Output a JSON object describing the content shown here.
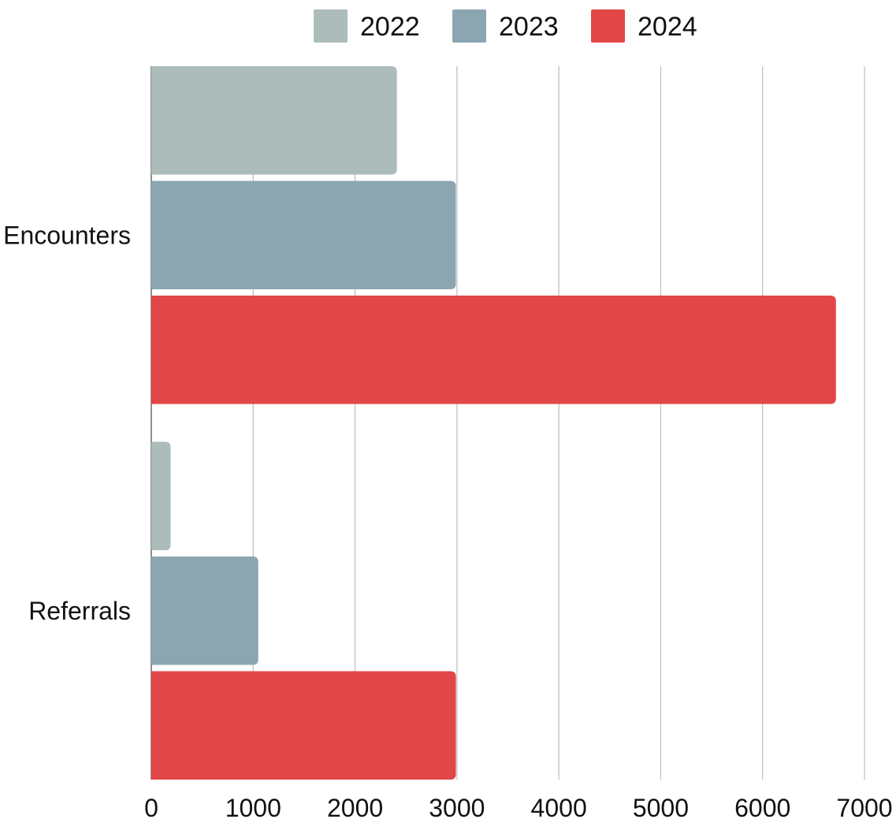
{
  "chart_data": {
    "type": "bar",
    "orientation": "horizontal",
    "categories": [
      "Encounters",
      "Referrals"
    ],
    "series": [
      {
        "name": "2022",
        "color": "#abbcbb",
        "values": [
          2410,
          190
        ]
      },
      {
        "name": "2023",
        "color": "#8ba6b1",
        "values": [
          2990,
          1050
        ]
      },
      {
        "name": "2024",
        "color": "#e24646",
        "values": [
          6720,
          2990
        ]
      }
    ],
    "xlim": [
      0,
      7000
    ],
    "x_ticks": [
      "0",
      "1000",
      "2000",
      "3000",
      "4000",
      "5000",
      "6000",
      "7000"
    ],
    "grid": true,
    "legend_position": "top-center"
  }
}
